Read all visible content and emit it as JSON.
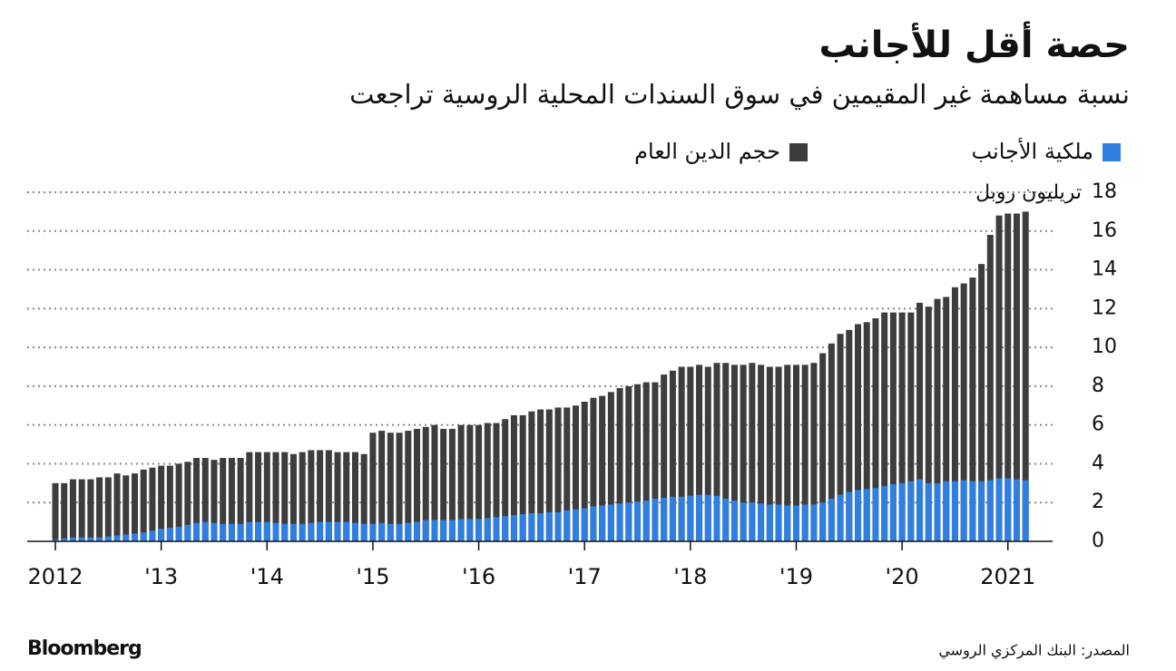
{
  "chart_data": {
    "type": "bar",
    "barmode": "overlay",
    "title": "حصة أقل للأجانب",
    "subtitle": "نسبة مساهمة غير المقيمين في سوق السندات المحلية الروسية تراجعت",
    "y_label": "تريليون روبل",
    "source": "المصدر: البنك المركزي الروسي",
    "brand": "Bloomberg",
    "categories": [
      "2012",
      null,
      null,
      null,
      null,
      null,
      null,
      null,
      null,
      null,
      null,
      null,
      "'13",
      null,
      null,
      null,
      null,
      null,
      null,
      null,
      null,
      null,
      null,
      null,
      "'14",
      null,
      null,
      null,
      null,
      null,
      null,
      null,
      null,
      null,
      null,
      null,
      "'15",
      null,
      null,
      null,
      null,
      null,
      null,
      null,
      null,
      null,
      null,
      null,
      "'16",
      null,
      null,
      null,
      null,
      null,
      null,
      null,
      null,
      null,
      null,
      null,
      "'17",
      null,
      null,
      null,
      null,
      null,
      null,
      null,
      null,
      null,
      null,
      null,
      "'18",
      null,
      null,
      null,
      null,
      null,
      null,
      null,
      null,
      null,
      null,
      null,
      "'19",
      null,
      null,
      null,
      null,
      null,
      null,
      null,
      null,
      null,
      null,
      null,
      "'20",
      null,
      null,
      null,
      null,
      null,
      null,
      null,
      null,
      null,
      null,
      null,
      "2021",
      null,
      null
    ],
    "series": [
      {
        "name": "ملكية الأجانب",
        "color": "#2f7fe2",
        "values": [
          0.1,
          0.15,
          0.2,
          0.2,
          0.2,
          0.2,
          0.25,
          0.3,
          0.35,
          0.4,
          0.45,
          0.55,
          0.65,
          0.7,
          0.75,
          0.85,
          0.95,
          1.0,
          0.95,
          0.9,
          0.9,
          0.9,
          1.0,
          1.0,
          1.0,
          0.95,
          0.9,
          0.9,
          0.9,
          0.95,
          1.0,
          1.0,
          1.0,
          1.0,
          0.95,
          0.9,
          0.9,
          0.95,
          0.9,
          0.9,
          0.95,
          1.0,
          1.1,
          1.1,
          1.1,
          1.1,
          1.15,
          1.15,
          1.15,
          1.2,
          1.25,
          1.3,
          1.35,
          1.4,
          1.45,
          1.45,
          1.5,
          1.5,
          1.6,
          1.65,
          1.7,
          1.8,
          1.85,
          1.9,
          1.95,
          2.0,
          2.05,
          2.1,
          2.2,
          2.25,
          2.3,
          2.3,
          2.35,
          2.4,
          2.4,
          2.35,
          2.2,
          2.1,
          2.0,
          2.0,
          1.95,
          1.9,
          1.9,
          1.85,
          1.85,
          1.9,
          1.9,
          2.0,
          2.2,
          2.4,
          2.55,
          2.65,
          2.7,
          2.75,
          2.85,
          2.95,
          3.0,
          3.1,
          3.2,
          3.0,
          3.0,
          3.1,
          3.1,
          3.15,
          3.1,
          3.1,
          3.15,
          3.25,
          3.25,
          3.2,
          3.15
        ]
      },
      {
        "name": "حجم الدين العام",
        "color": "#3d3d3d",
        "values": [
          3.0,
          3.0,
          3.2,
          3.2,
          3.2,
          3.3,
          3.3,
          3.5,
          3.4,
          3.5,
          3.7,
          3.8,
          3.9,
          3.9,
          4.0,
          4.1,
          4.3,
          4.3,
          4.2,
          4.3,
          4.3,
          4.3,
          4.6,
          4.6,
          4.6,
          4.6,
          4.6,
          4.5,
          4.6,
          4.7,
          4.7,
          4.7,
          4.6,
          4.6,
          4.6,
          4.5,
          5.6,
          5.7,
          5.6,
          5.6,
          5.7,
          5.8,
          5.9,
          6.0,
          5.8,
          5.8,
          6.0,
          6.0,
          6.0,
          6.1,
          6.1,
          6.3,
          6.5,
          6.5,
          6.7,
          6.8,
          6.8,
          6.9,
          6.9,
          7.0,
          7.2,
          7.4,
          7.5,
          7.7,
          7.9,
          8.0,
          8.1,
          8.2,
          8.2,
          8.6,
          8.8,
          9.0,
          9.0,
          9.1,
          9.0,
          9.2,
          9.2,
          9.1,
          9.1,
          9.2,
          9.1,
          9.0,
          9.0,
          9.1,
          9.1,
          9.1,
          9.2,
          9.7,
          10.2,
          10.7,
          10.9,
          11.2,
          11.3,
          11.5,
          11.8,
          11.8,
          11.8,
          11.8,
          12.3,
          12.1,
          12.5,
          12.6,
          13.1,
          13.3,
          13.6,
          14.3,
          15.8,
          16.8,
          16.9,
          16.9,
          17.0
        ]
      }
    ],
    "ylim": [
      0,
      18
    ],
    "yticks": [
      0,
      2,
      4,
      6,
      8,
      10,
      12,
      14,
      16,
      18
    ],
    "grid": true
  }
}
